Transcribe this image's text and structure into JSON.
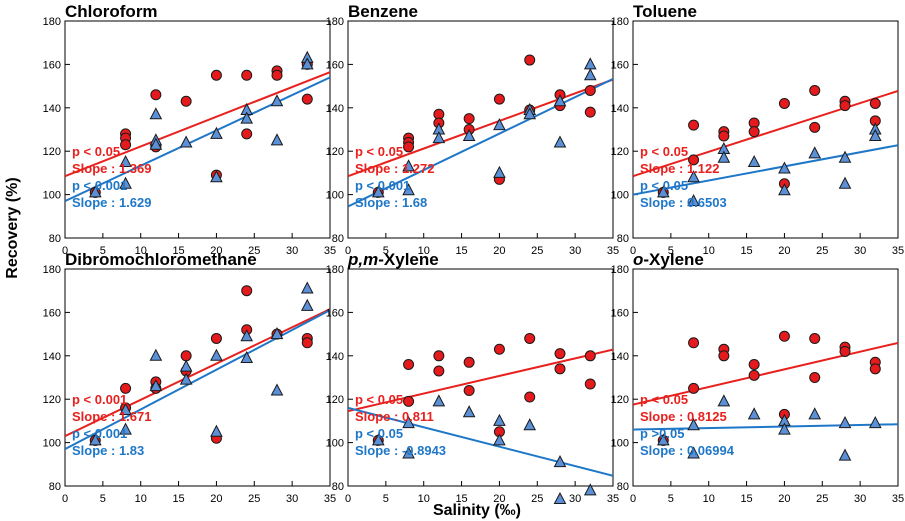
{
  "figure": {
    "ylabel": "Recovery (%)",
    "xlabel": "Salinity (‰)",
    "colors": {
      "red": "#e8211e",
      "blue": "#1f77c8",
      "marker_red": "#e41a1c",
      "marker_blue": "#5b8fd6",
      "marker_stroke": "#1a1a1a"
    }
  },
  "chart_data": [
    {
      "type": "scatter",
      "title": "Chloroform",
      "title_parts": [
        {
          "text": "Chloroform",
          "italic": false
        }
      ],
      "xlim": [
        0,
        35
      ],
      "ylim": [
        80,
        180
      ],
      "xticks": [
        0,
        5,
        10,
        15,
        20,
        25,
        30,
        35
      ],
      "yticks": [
        80,
        100,
        120,
        140,
        160,
        180
      ],
      "series": [
        {
          "name": "red",
          "marker": "circle",
          "fit": {
            "intercept": 108.5,
            "slope": 1.369
          },
          "x": [
            4,
            8,
            8,
            8,
            12,
            12,
            16,
            20,
            20,
            24,
            24,
            28,
            28,
            32,
            32
          ],
          "y": [
            101,
            128,
            126,
            123,
            146,
            122,
            143,
            155,
            109,
            155,
            128,
            157,
            155,
            144,
            160
          ],
          "stats": [
            "p < 0.05",
            "Slope : 1.369"
          ]
        },
        {
          "name": "blue",
          "marker": "triangle",
          "fit": {
            "intercept": 97,
            "slope": 1.629
          },
          "x": [
            4,
            8,
            8,
            12,
            12,
            12,
            16,
            20,
            20,
            24,
            24,
            28,
            28,
            32,
            32
          ],
          "y": [
            101,
            115,
            105,
            137,
            125,
            123,
            124,
            128,
            108,
            139,
            135,
            143,
            125,
            163,
            160
          ],
          "stats": [
            "p < 0.001",
            "Slope : 1.629"
          ]
        }
      ]
    },
    {
      "type": "scatter",
      "title": "Benzene",
      "title_parts": [
        {
          "text": "Benzene",
          "italic": false
        }
      ],
      "xlim": [
        0,
        35
      ],
      "ylim": [
        80,
        180
      ],
      "xticks": [
        0,
        5,
        10,
        15,
        20,
        25,
        30,
        35
      ],
      "yticks": [
        80,
        100,
        120,
        140,
        160,
        180
      ],
      "series": [
        {
          "name": "red",
          "marker": "circle",
          "fit": {
            "intercept": 108.5,
            "slope": 1.272
          },
          "x": [
            4,
            8,
            8,
            8,
            12,
            12,
            16,
            16,
            20,
            20,
            24,
            24,
            28,
            28,
            32,
            32
          ],
          "y": [
            101,
            126,
            124,
            122,
            137,
            133,
            135,
            130,
            144,
            107,
            162,
            139,
            146,
            141,
            148,
            138
          ],
          "stats": [
            "p < 0.05",
            "Slope : 1.272"
          ]
        },
        {
          "name": "blue",
          "marker": "triangle",
          "fit": {
            "intercept": 94.5,
            "slope": 1.68
          },
          "x": [
            4,
            8,
            8,
            12,
            12,
            16,
            20,
            20,
            24,
            24,
            28,
            28,
            32,
            32
          ],
          "y": [
            101,
            113,
            102,
            130,
            126,
            127,
            132,
            110,
            139,
            137,
            143,
            124,
            160,
            155
          ],
          "stats": [
            "p < 0.001",
            "Slope : 1.68"
          ]
        }
      ]
    },
    {
      "type": "scatter",
      "title": "Toluene",
      "title_parts": [
        {
          "text": "Toluene",
          "italic": false
        }
      ],
      "xlim": [
        0,
        35
      ],
      "ylim": [
        80,
        180
      ],
      "xticks": [
        0,
        5,
        10,
        15,
        20,
        25,
        30,
        35
      ],
      "yticks": [
        80,
        100,
        120,
        140,
        160,
        180
      ],
      "series": [
        {
          "name": "red",
          "marker": "circle",
          "fit": {
            "intercept": 108.5,
            "slope": 1.122
          },
          "x": [
            4,
            8,
            8,
            12,
            12,
            16,
            16,
            20,
            20,
            24,
            24,
            28,
            28,
            32,
            32
          ],
          "y": [
            101,
            132,
            116,
            129,
            127,
            133,
            129,
            142,
            105,
            148,
            131,
            143,
            141,
            142,
            134
          ],
          "stats": [
            "p < 0.05",
            "Slope : 1.122"
          ]
        },
        {
          "name": "blue",
          "marker": "triangle",
          "fit": {
            "intercept": 100,
            "slope": 0.6503
          },
          "x": [
            4,
            8,
            8,
            12,
            12,
            16,
            20,
            20,
            24,
            28,
            28,
            32,
            32
          ],
          "y": [
            101,
            108,
            97,
            121,
            117,
            115,
            112,
            102,
            119,
            117,
            105,
            130,
            127
          ],
          "stats": [
            "p < 0.05",
            "Slope : 0.6503"
          ]
        }
      ]
    },
    {
      "type": "scatter",
      "title": "Dibromochloromethane",
      "title_parts": [
        {
          "text": "Dibromochloromethane",
          "italic": false
        }
      ],
      "xlim": [
        0,
        35
      ],
      "ylim": [
        80,
        180
      ],
      "xticks": [
        0,
        5,
        10,
        15,
        20,
        25,
        30,
        35
      ],
      "yticks": [
        80,
        100,
        120,
        140,
        160,
        180
      ],
      "series": [
        {
          "name": "red",
          "marker": "circle",
          "fit": {
            "intercept": 103,
            "slope": 1.671
          },
          "x": [
            4,
            8,
            8,
            12,
            12,
            16,
            16,
            20,
            20,
            24,
            24,
            28,
            32,
            32
          ],
          "y": [
            101,
            125,
            116,
            128,
            125,
            140,
            133,
            148,
            102,
            170,
            152,
            150,
            148,
            146
          ],
          "stats": [
            "p < 0.001",
            "Slope : 1.671"
          ]
        },
        {
          "name": "blue",
          "marker": "triangle",
          "fit": {
            "intercept": 97,
            "slope": 1.83
          },
          "x": [
            4,
            8,
            8,
            12,
            12,
            16,
            16,
            20,
            20,
            24,
            24,
            28,
            28,
            32,
            32
          ],
          "y": [
            101,
            115,
            106,
            140,
            126,
            135,
            129,
            140,
            105,
            149,
            139,
            150,
            124,
            171,
            163
          ],
          "stats": [
            "p < 0.001",
            "Slope : 1.83"
          ]
        }
      ]
    },
    {
      "type": "scatter",
      "title": "p,m-Xylene",
      "title_parts": [
        {
          "text": "p,m",
          "italic": true
        },
        {
          "text": "-Xylene",
          "italic": false
        }
      ],
      "xlim": [
        0,
        35
      ],
      "ylim": [
        80,
        180
      ],
      "xticks": [
        0,
        5,
        10,
        15,
        20,
        25,
        30,
        35
      ],
      "yticks": [
        80,
        100,
        120,
        140,
        160,
        180
      ],
      "series": [
        {
          "name": "red",
          "marker": "circle",
          "fit": {
            "intercept": 114.5,
            "slope": 0.811
          },
          "x": [
            4,
            8,
            8,
            12,
            12,
            16,
            16,
            20,
            20,
            24,
            24,
            28,
            28,
            32,
            32
          ],
          "y": [
            101,
            136,
            119,
            140,
            133,
            137,
            124,
            143,
            105,
            148,
            121,
            141,
            134,
            140,
            127
          ],
          "stats": [
            "p < 0.05",
            "Slope : 0.811"
          ]
        },
        {
          "name": "blue",
          "marker": "triangle",
          "fit": {
            "intercept": 116,
            "slope": -0.8943
          },
          "x": [
            4,
            8,
            8,
            12,
            16,
            20,
            20,
            24,
            28,
            28,
            32
          ],
          "y": [
            101,
            109,
            95,
            119,
            114,
            110,
            101,
            108,
            91,
            74,
            78
          ],
          "stats": [
            "p < 0.05",
            "Slope : -0.8943"
          ]
        }
      ]
    },
    {
      "type": "scatter",
      "title": "o-Xylene",
      "title_parts": [
        {
          "text": "o",
          "italic": true
        },
        {
          "text": "-Xylene",
          "italic": false
        }
      ],
      "xlim": [
        0,
        35
      ],
      "ylim": [
        80,
        180
      ],
      "xticks": [
        0,
        5,
        10,
        15,
        20,
        25,
        30,
        35
      ],
      "yticks": [
        80,
        100,
        120,
        140,
        160,
        180
      ],
      "series": [
        {
          "name": "red",
          "marker": "circle",
          "fit": {
            "intercept": 117.5,
            "slope": 0.8125
          },
          "x": [
            4,
            8,
            8,
            12,
            12,
            16,
            16,
            20,
            20,
            24,
            24,
            28,
            28,
            32,
            32
          ],
          "y": [
            101,
            146,
            125,
            143,
            140,
            136,
            131,
            149,
            113,
            148,
            130,
            144,
            142,
            137,
            134
          ],
          "stats": [
            "p < 0.05",
            "Slope : 0.8125"
          ]
        },
        {
          "name": "blue",
          "marker": "triangle",
          "fit": {
            "intercept": 106,
            "slope": 0.06994
          },
          "x": [
            4,
            8,
            8,
            12,
            16,
            20,
            20,
            24,
            28,
            28,
            32
          ],
          "y": [
            101,
            108,
            95,
            119,
            113,
            110,
            106,
            113,
            109,
            94,
            109
          ],
          "stats": [
            "p >0.05",
            "Slope : 0.06994"
          ]
        }
      ]
    }
  ]
}
